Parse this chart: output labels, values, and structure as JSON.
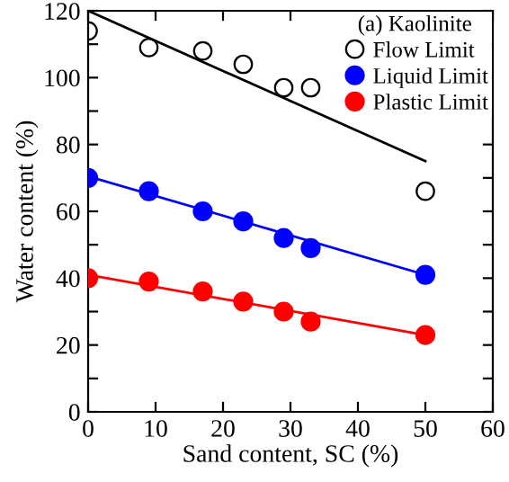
{
  "chart_data": {
    "type": "scatter",
    "xlabel": "Sand content, SC (%)",
    "ylabel": "Water content (%)",
    "legend_title": "(a) Kaolinite",
    "legend": "top right",
    "grid": false,
    "xlim": [
      0,
      60
    ],
    "ylim": [
      0,
      120
    ],
    "xticks": [
      0,
      10,
      20,
      30,
      40,
      50,
      60
    ],
    "yticks": [
      0,
      {
        "value": 10,
        "label": null
      },
      20,
      {
        "value": 30,
        "label": null
      },
      40,
      {
        "value": 50,
        "label": null
      },
      60,
      {
        "value": 70,
        "label": null
      },
      80,
      {
        "value": 90,
        "label": null
      },
      100,
      {
        "value": 110,
        "label": null
      },
      120
    ],
    "series": [
      {
        "name": "Flow Limit",
        "color": "#000000",
        "marker": "circle",
        "x": [
          0,
          9,
          17,
          23,
          29,
          33,
          50
        ],
        "values": [
          114,
          109,
          108,
          104,
          97,
          97,
          66
        ]
      },
      {
        "name": "Liquid Limit",
        "color": "#0000ff",
        "marker": "circle",
        "x": [
          0,
          9,
          17,
          23,
          29,
          33,
          50
        ],
        "values": [
          70,
          66,
          60,
          57,
          52,
          49,
          41
        ]
      },
      {
        "name": "Plastic Limit",
        "color": "#ff0000",
        "marker": "circle",
        "x": [
          0,
          9,
          17,
          23,
          29,
          33,
          50
        ],
        "values": [
          40,
          39,
          36,
          33,
          30,
          27,
          23
        ]
      },
      {
        "type": "line",
        "color": "#000000",
        "marker": "none",
        "x": [
          0,
          50
        ],
        "values": [
          120,
          75
        ]
      },
      {
        "type": "line",
        "color": "#0000ff",
        "marker": "none",
        "x": [
          0,
          50
        ],
        "values": [
          70.5,
          41
        ]
      },
      {
        "type": "line",
        "color": "#ff0000",
        "marker": "none",
        "x": [
          0,
          50
        ],
        "values": [
          41,
          23
        ]
      }
    ]
  }
}
